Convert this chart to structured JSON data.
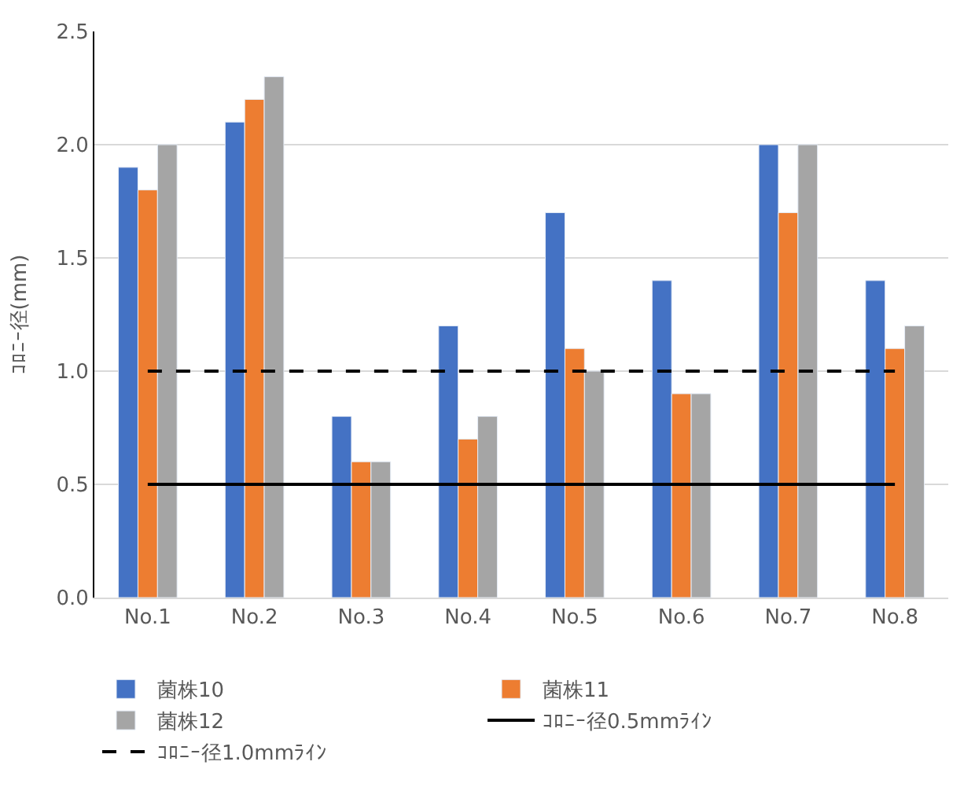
{
  "chart_data": {
    "type": "bar",
    "ylabel": "ｺﾛﾆｰ径(mm)",
    "categories": [
      "No.1",
      "No.2",
      "No.3",
      "No.4",
      "No.5",
      "No.6",
      "No.7",
      "No.8"
    ],
    "series": [
      {
        "name": "菌株10",
        "color": "#4472c4",
        "values": [
          1.9,
          2.1,
          0.8,
          1.2,
          1.7,
          1.4,
          2.0,
          1.4
        ]
      },
      {
        "name": "菌株11",
        "color": "#ed7d31",
        "values": [
          1.8,
          2.2,
          0.6,
          0.7,
          1.1,
          0.9,
          1.7,
          1.1
        ]
      },
      {
        "name": "菌株12",
        "color": "#a5a5a5",
        "values": [
          2.0,
          2.3,
          0.6,
          0.8,
          1.0,
          0.9,
          2.0,
          1.2
        ]
      },
      {
        "name": "ｺﾛﾆｰ径0.5mmﾗｲﾝ",
        "type": "line",
        "color": "#000000",
        "line_style": "solid",
        "values": [
          0.5,
          0.5,
          0.5,
          0.5,
          0.5,
          0.5,
          0.5,
          0.5
        ]
      },
      {
        "name": "ｺﾛﾆｰ径1.0mmﾗｲﾝ",
        "type": "line",
        "color": "#000000",
        "line_style": "dashed",
        "values": [
          1.0,
          1.0,
          1.0,
          1.0,
          1.0,
          1.0,
          1.0,
          1.0
        ]
      }
    ],
    "ylim": [
      0,
      2.5
    ],
    "yticks": [
      {
        "value": 0,
        "label": "0.0"
      },
      {
        "value": 0.5,
        "label": "0.5"
      },
      {
        "value": 1,
        "label": "1.0"
      },
      {
        "value": 1.5,
        "label": "1.5"
      },
      {
        "value": 2,
        "label": "2.0"
      },
      {
        "value": 2.5,
        "label": "2.5"
      }
    ],
    "grid": "y",
    "legend": "bottom",
    "marker": "none"
  }
}
